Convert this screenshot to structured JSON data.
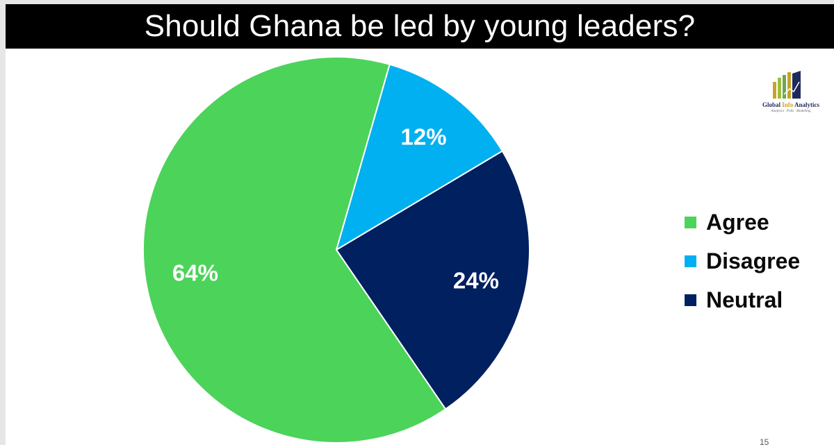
{
  "slide": {
    "title": "Should Ghana be led by young leaders?",
    "page_number": "15"
  },
  "logo": {
    "name_part1": "Global ",
    "name_part2": "Info",
    "name_part3": " Analytics",
    "tagline": "Analytics · Polls · Modelling"
  },
  "chart_data": {
    "type": "pie",
    "title": "Should Ghana be led by young leaders?",
    "slices": [
      {
        "name": "Agree",
        "value": 64,
        "label": "64%",
        "color": "#4cd35a"
      },
      {
        "name": "Disagree",
        "value": 12,
        "label": "12%",
        "color": "#00b0f0"
      },
      {
        "name": "Neutral",
        "value": 24,
        "label": "24%",
        "color": "#002060"
      }
    ],
    "start_slice_order": [
      "Disagree",
      "Neutral",
      "Agree"
    ],
    "legend_position": "right"
  }
}
